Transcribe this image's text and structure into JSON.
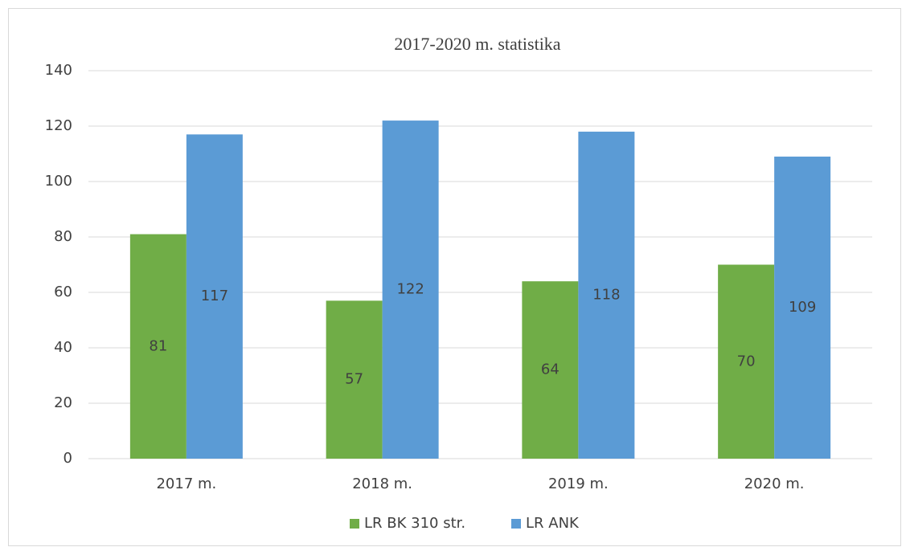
{
  "chart_data": {
    "type": "bar",
    "title": "2017-2020 m. statistika",
    "categories": [
      "2017 m.",
      "2018 m.",
      "2019 m.",
      "2020 m."
    ],
    "series": [
      {
        "name": "LR BK 310 str.",
        "color": "#70ad47",
        "values": [
          81,
          57,
          64,
          70
        ]
      },
      {
        "name": "LR ANK",
        "color": "#5b9bd5",
        "values": [
          117,
          122,
          118,
          109
        ]
      }
    ],
    "ylim": [
      0,
      140
    ],
    "yticks": [
      0,
      20,
      40,
      60,
      80,
      100,
      120,
      140
    ],
    "grid": true,
    "legend": "bottom",
    "data_labels": true
  }
}
